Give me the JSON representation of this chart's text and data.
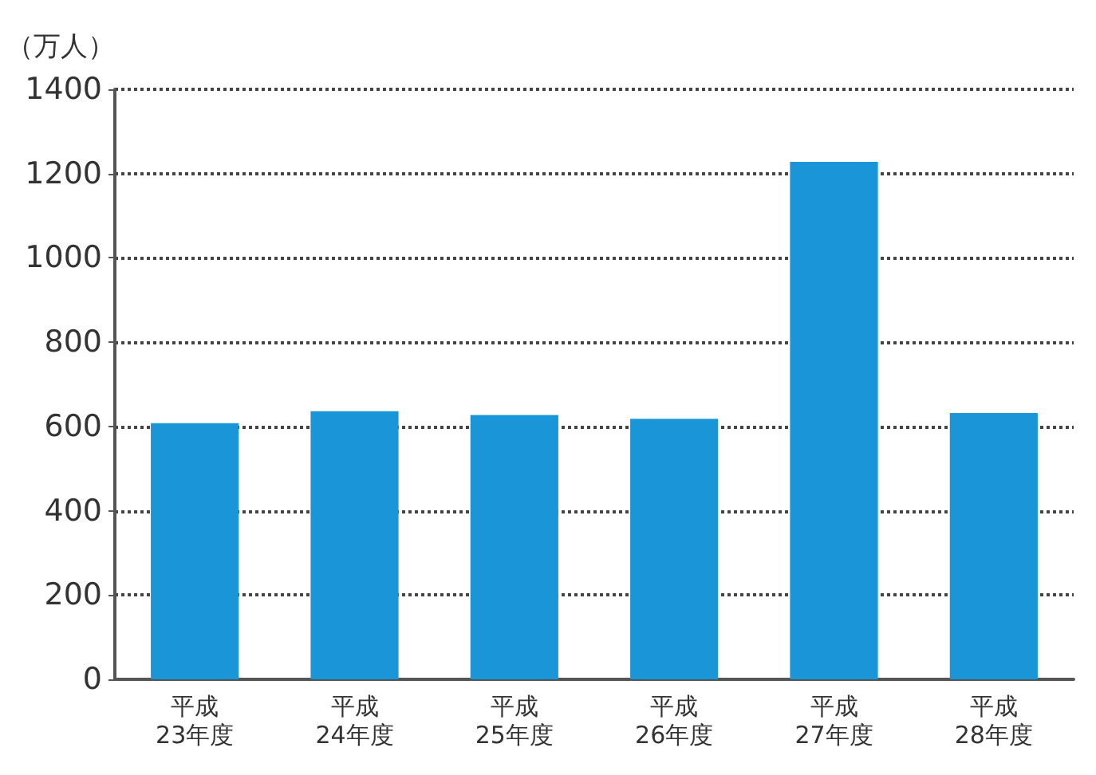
{
  "chart_data": {
    "type": "bar",
    "ylabel": "（万人）",
    "categories": [
      "平成\n23年度",
      "平成\n24年度",
      "平成\n25年度",
      "平成\n26年度",
      "平成\n27年度",
      "平成\n28年度"
    ],
    "values": [
      608,
      636,
      627,
      618,
      1228,
      632
    ],
    "color": "#1a96d8",
    "ylim": [
      0,
      1400
    ],
    "yticks": [
      0,
      200,
      400,
      600,
      800,
      1000,
      1200,
      1400
    ],
    "grid": "y"
  }
}
